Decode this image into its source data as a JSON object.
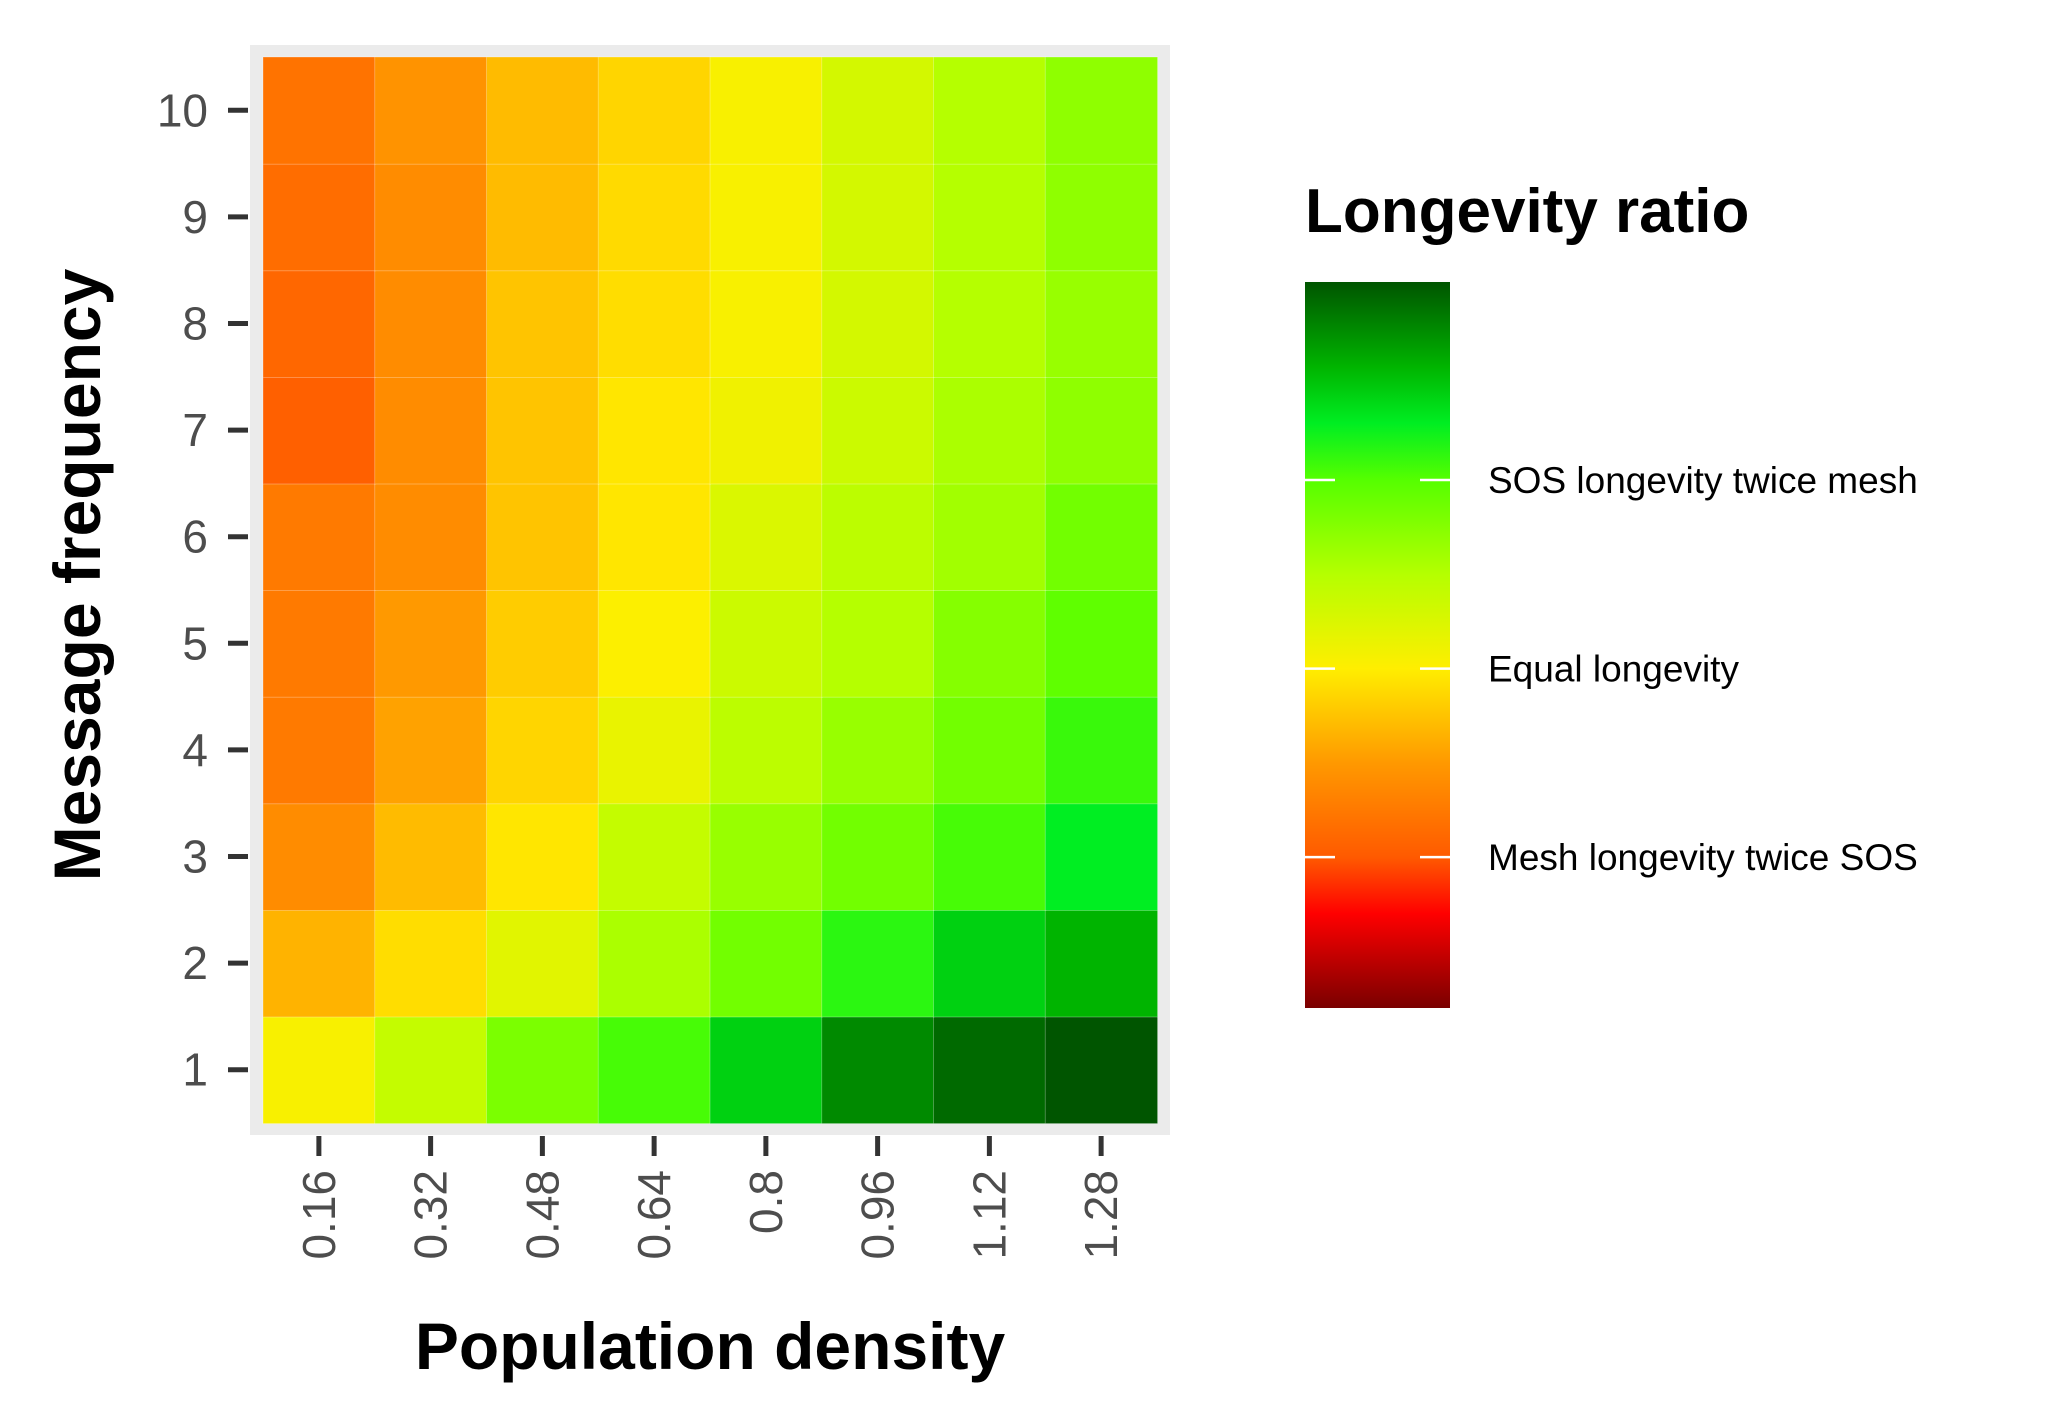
{
  "chart_data": {
    "type": "heatmap",
    "title": "",
    "xlabel": "Population density",
    "ylabel": "Message frequency",
    "x_categories": [
      "0.16",
      "0.32",
      "0.48",
      "0.64",
      "0.8",
      "0.96",
      "1.12",
      "1.28"
    ],
    "y_categories": [
      "1",
      "2",
      "3",
      "4",
      "5",
      "6",
      "7",
      "8",
      "9",
      "10"
    ],
    "value_scale": "log2 of longevity ratio (SOS / mesh)",
    "values_log2_by_row": [
      [
        0.05,
        0.4,
        0.8,
        1.05,
        1.45,
        1.8,
        1.95,
        2.05
      ],
      [
        -0.35,
        -0.1,
        0.2,
        0.55,
        0.85,
        1.15,
        1.45,
        1.6
      ],
      [
        -0.6,
        -0.3,
        -0.05,
        0.4,
        0.65,
        0.85,
        1.05,
        1.3
      ],
      [
        -0.75,
        -0.45,
        -0.15,
        0.15,
        0.45,
        0.65,
        0.85,
        1.1
      ],
      [
        -0.75,
        -0.5,
        -0.2,
        0.02,
        0.35,
        0.5,
        0.75,
        0.95
      ],
      [
        -0.75,
        -0.6,
        -0.25,
        -0.05,
        0.25,
        0.45,
        0.6,
        0.85
      ],
      [
        -0.95,
        -0.6,
        -0.25,
        -0.05,
        0.1,
        0.35,
        0.55,
        0.7
      ],
      [
        -0.9,
        -0.6,
        -0.25,
        -0.1,
        0.05,
        0.3,
        0.5,
        0.65
      ],
      [
        -0.85,
        -0.6,
        -0.3,
        -0.12,
        0.05,
        0.3,
        0.5,
        0.7
      ],
      [
        -0.8,
        -0.55,
        -0.3,
        -0.15,
        0.05,
        0.3,
        0.5,
        0.7
      ]
    ],
    "legend": {
      "title": "Longevity ratio",
      "position": "right",
      "range_log2": [
        -1.8,
        2.05
      ],
      "breaks": [
        {
          "value_log2": 1,
          "label": "SOS longevity twice mesh"
        },
        {
          "value_log2": 0,
          "label": "Equal longevity"
        },
        {
          "value_log2": -1,
          "label": "Mesh longevity twice SOS"
        }
      ],
      "color_stops": [
        {
          "value_log2": -1.8,
          "color": "#7a0000"
        },
        {
          "value_log2": -1.3,
          "color": "#ff0000"
        },
        {
          "value_log2": -1.0,
          "color": "#ff5a00"
        },
        {
          "value_log2": -0.5,
          "color": "#ff9900"
        },
        {
          "value_log2": 0.0,
          "color": "#ffee00"
        },
        {
          "value_log2": 0.5,
          "color": "#b5ff00"
        },
        {
          "value_log2": 1.0,
          "color": "#55ff00"
        },
        {
          "value_log2": 1.3,
          "color": "#00ee22"
        },
        {
          "value_log2": 1.6,
          "color": "#00b400"
        },
        {
          "value_log2": 2.05,
          "color": "#005500"
        }
      ]
    }
  }
}
